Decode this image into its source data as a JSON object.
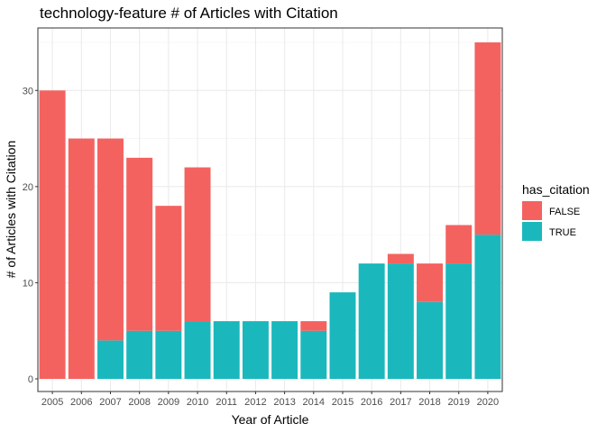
{
  "chart_data": {
    "type": "bar",
    "stacked": true,
    "title": "technology-feature # of Articles with Citation",
    "xlabel": "Year of Article",
    "ylabel": "# of Articles with Citation",
    "categories": [
      "2005",
      "2006",
      "2007",
      "2008",
      "2009",
      "2010",
      "2011",
      "2012",
      "2013",
      "2014",
      "2015",
      "2016",
      "2017",
      "2018",
      "2019",
      "2020"
    ],
    "series": [
      {
        "name": "TRUE",
        "color": "#1ab8bc",
        "values": [
          0,
          0,
          4,
          5,
          5,
          6,
          6,
          6,
          6,
          5,
          9,
          12,
          12,
          8,
          12,
          15
        ]
      },
      {
        "name": "FALSE",
        "color": "#f46260",
        "values": [
          30,
          25,
          21,
          18,
          13,
          16,
          0,
          0,
          0,
          1,
          0,
          0,
          1,
          4,
          4,
          20
        ]
      }
    ],
    "ylim": [
      0,
      36.5
    ],
    "yticks": [
      0,
      10,
      20,
      30
    ],
    "grid": true,
    "legend": {
      "title": "has_citation",
      "placement": "right",
      "entries": [
        {
          "label": "FALSE",
          "color": "#f46260"
        },
        {
          "label": "TRUE",
          "color": "#1ab8bc"
        }
      ]
    }
  }
}
